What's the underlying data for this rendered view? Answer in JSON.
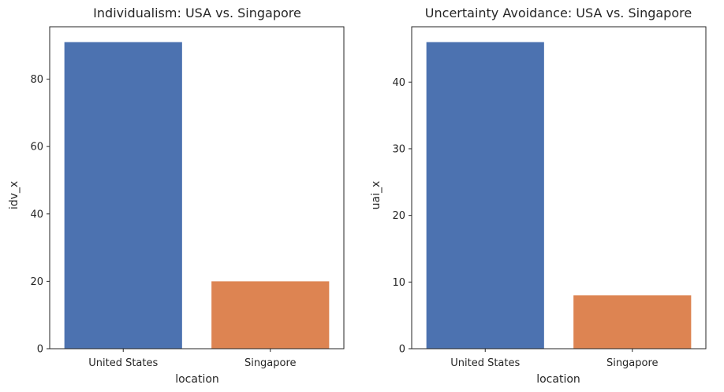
{
  "chart_data": [
    {
      "type": "bar",
      "title": "Individualism: USA vs. Singapore",
      "xlabel": "location",
      "ylabel": "idv_x",
      "categories": [
        "United States",
        "Singapore"
      ],
      "values": [
        91,
        20
      ],
      "colors": [
        "#4c72b0",
        "#dd8452"
      ],
      "ylim": [
        0,
        95.55
      ],
      "yticks": [
        0,
        20,
        40,
        60,
        80
      ],
      "grid": false
    },
    {
      "type": "bar",
      "title": "Uncertainty Avoidance: USA vs. Singapore",
      "xlabel": "location",
      "ylabel": "uai_x",
      "categories": [
        "United States",
        "Singapore"
      ],
      "values": [
        46,
        8
      ],
      "colors": [
        "#4c72b0",
        "#dd8452"
      ],
      "ylim": [
        0,
        48.3
      ],
      "yticks": [
        0,
        10,
        20,
        30,
        40
      ],
      "grid": false
    }
  ]
}
